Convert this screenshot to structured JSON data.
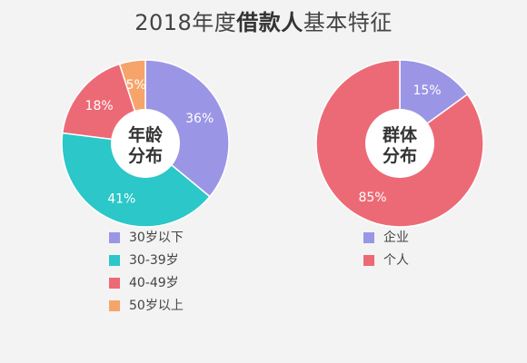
{
  "title": {
    "prefix": "2018年度",
    "bold": "借款人",
    "suffix": "基本特征"
  },
  "chart_data": [
    {
      "type": "pie",
      "center_label": [
        "年龄",
        "分布"
      ],
      "slices": [
        {
          "name": "30岁以下",
          "value": 36,
          "label": "36%",
          "color": "#9b95e6"
        },
        {
          "name": "30-39岁",
          "value": 41,
          "label": "41%",
          "color": "#2cc7c8"
        },
        {
          "name": "40-49岁",
          "value": 18,
          "label": "18%",
          "color": "#ec6a76"
        },
        {
          "name": "50岁以上",
          "value": 5,
          "label": "5%",
          "color": "#f7a46b"
        }
      ],
      "legend_position": "bottom"
    },
    {
      "type": "pie",
      "center_label": [
        "群体",
        "分布"
      ],
      "slices": [
        {
          "name": "企业",
          "value": 15,
          "label": "15%",
          "color": "#9b95e6"
        },
        {
          "name": "个人",
          "value": 85,
          "label": "85%",
          "color": "#ec6a76"
        }
      ],
      "legend_position": "bottom"
    }
  ]
}
